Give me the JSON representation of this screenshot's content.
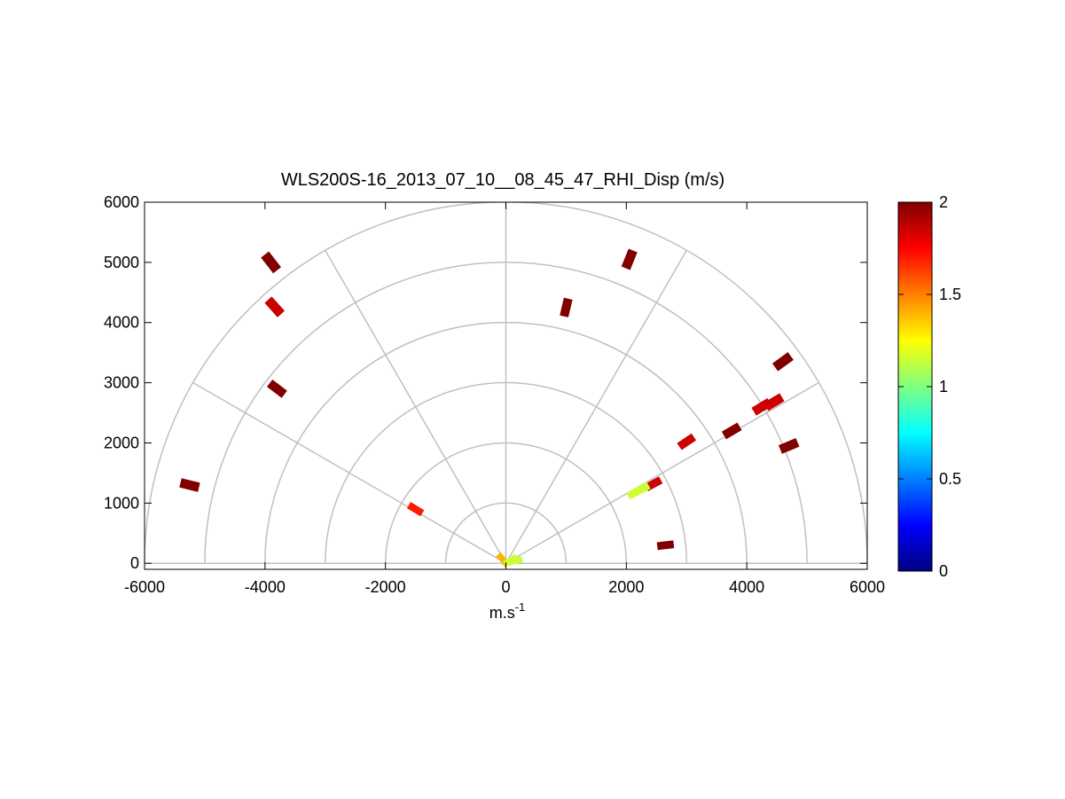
{
  "chart_data": {
    "type": "polar-rhi",
    "title": "WLS200S-16_2013_07_10__08_45_47_RHI_Disp (m/s)",
    "xlabel": "m.s",
    "xlabel_sup": "-1",
    "ylabel": "",
    "xlim": [
      -6000,
      6000
    ],
    "ylim": [
      -100,
      6000
    ],
    "xticks": [
      -6000,
      -4000,
      -2000,
      0,
      2000,
      4000,
      6000
    ],
    "yticks": [
      0,
      1000,
      2000,
      3000,
      4000,
      5000,
      6000
    ],
    "range_rings": [
      1000,
      2000,
      3000,
      4000,
      5000,
      6000
    ],
    "spoke_angles_deg": [
      0,
      30,
      60,
      90,
      120,
      150,
      180
    ],
    "colorbar": {
      "colormap": "jet",
      "min": 0,
      "max": 2,
      "ticks": [
        0,
        0.5,
        1,
        1.5,
        2
      ],
      "tick_labels": [
        "0",
        "0.5",
        "1",
        "1.5",
        "2"
      ]
    },
    "colors": {
      "dark_red": "#800000",
      "red": "#ff2a00",
      "orange": "#ff8000",
      "yellow_green": "#b0ff50",
      "green": "#70ff80",
      "grid": "#c0c0c0"
    },
    "cells": [
      {
        "x": 4250,
        "y": 2600,
        "value": 1.85
      },
      {
        "x": 4450,
        "y": 2680,
        "value": 1.85
      },
      {
        "x": 3000,
        "y": 2020,
        "value": 1.85
      },
      {
        "x": 2450,
        "y": 1320,
        "value": 1.85
      },
      {
        "x": 2250,
        "y": 1230,
        "value": 1.15
      },
      {
        "x": 2150,
        "y": 1180,
        "value": 1.15
      },
      {
        "x": -3840,
        "y": 4260,
        "value": 1.85
      },
      {
        "x": -1500,
        "y": 900,
        "value": 1.7
      },
      {
        "x": -50,
        "y": 60,
        "value": 1.4
      },
      {
        "x": 80,
        "y": 50,
        "value": 1.15
      },
      {
        "x": 160,
        "y": 40,
        "value": 1.15
      },
      {
        "x": 1000,
        "y": 4250,
        "value": 2.0
      },
      {
        "x": -3900,
        "y": 5000,
        "value": 2.0
      },
      {
        "x": -3800,
        "y": 2900,
        "value": 2.0
      },
      {
        "x": 4600,
        "y": 3350,
        "value": 2.0
      },
      {
        "x": 4700,
        "y": 1950,
        "value": 2.0
      },
      {
        "x": 3750,
        "y": 2200,
        "value": 2.0
      },
      {
        "x": 2050,
        "y": 5050,
        "value": 2.0
      },
      {
        "x": -5250,
        "y": 1300,
        "value": 2.0
      },
      {
        "x": 2650,
        "y": 300,
        "value": 2.0
      }
    ]
  }
}
